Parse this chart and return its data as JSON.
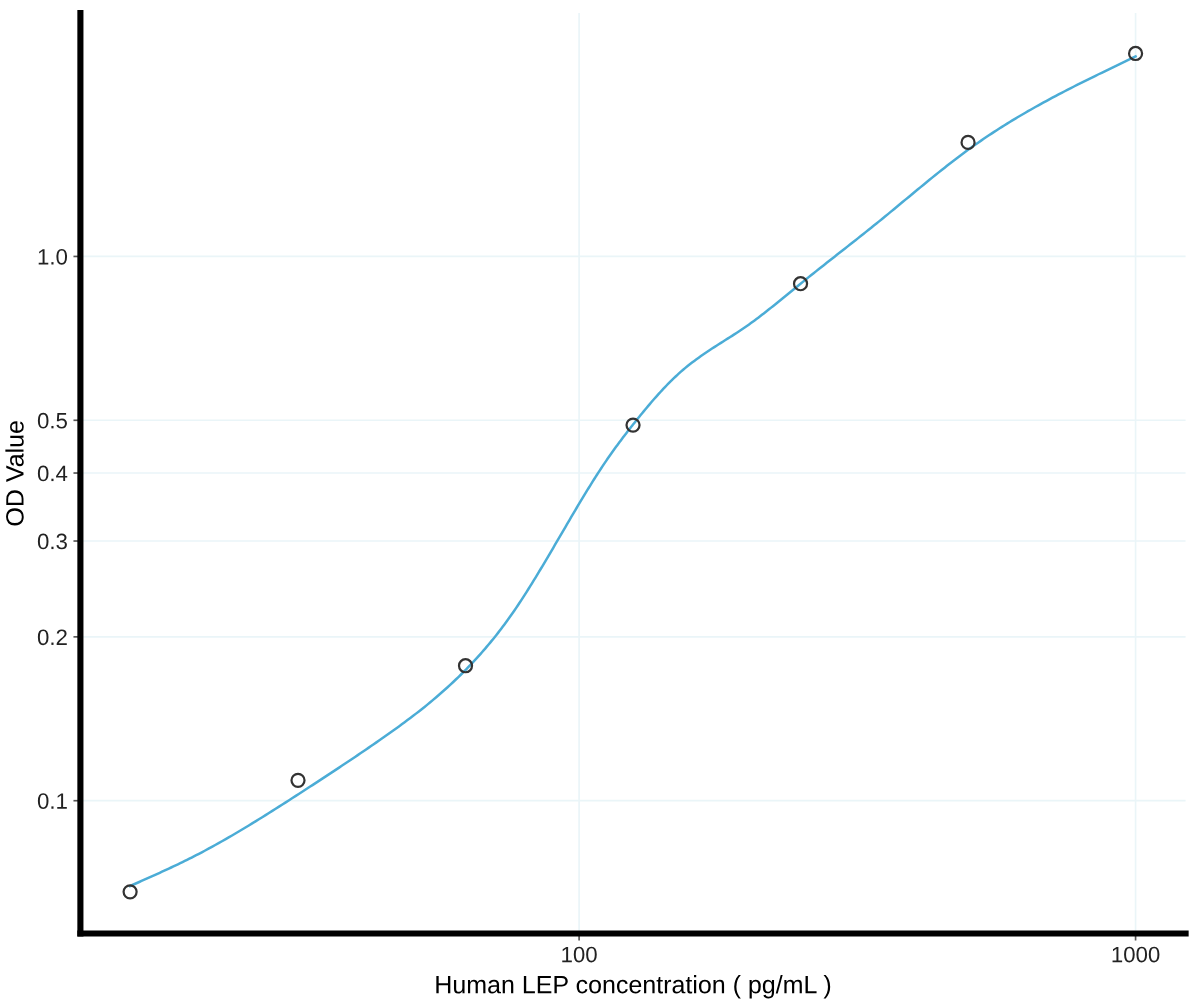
{
  "chart_data": {
    "type": "scatter",
    "xlabel": "Human LEP concentration ( pg/mL )",
    "ylabel": "OD Value",
    "log": "xy",
    "xlim": [
      12.7,
      1230
    ],
    "ylim": [
      0.057,
      2.8
    ],
    "xticks": [
      100,
      1000
    ],
    "yticks": [
      0.1,
      0.2,
      0.3,
      0.4,
      0.5,
      {
        "value": 1,
        "label": "1.0"
      }
    ],
    "grid": true,
    "series": [
      {
        "type": "line",
        "color": "#4bacd6",
        "marker": "none",
        "line_style": "solid",
        "x": [
          15.6,
          20.7,
          31.4,
          43.7,
          62.2,
          75.9,
          94.6,
          112,
          125,
          151,
          199,
          250,
          346,
          500,
          691,
          1000
        ],
        "values": [
          0.0697,
          0.0798,
          0.103,
          0.129,
          0.173,
          0.221,
          0.319,
          0.422,
          0.491,
          0.609,
          0.742,
          0.891,
          1.16,
          1.57,
          1.93,
          2.33
        ]
      },
      {
        "color": "#333333",
        "marker": "circle",
        "x": [
          15.6,
          31.25,
          62.5,
          125,
          250,
          500,
          1000
        ],
        "values": [
          0.068,
          0.109,
          0.177,
          0.49,
          0.891,
          1.62,
          2.36
        ]
      }
    ]
  }
}
